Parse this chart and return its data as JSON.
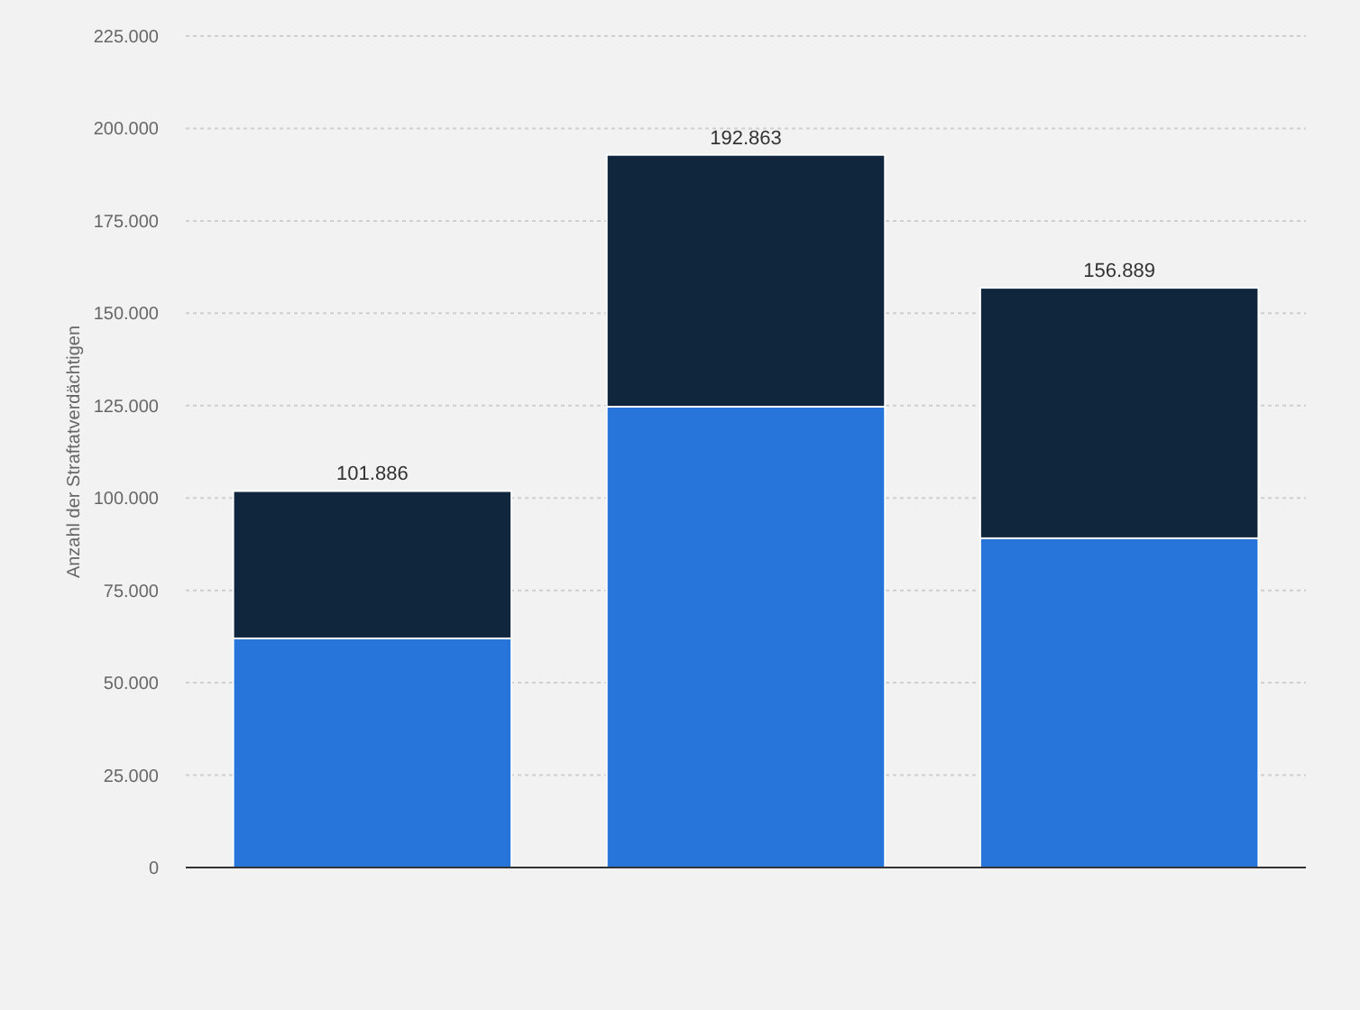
{
  "chart_data": {
    "type": "bar",
    "ylabel": "Anzahl der Straftatverdächtigen",
    "categories": [
      null,
      null,
      null
    ],
    "stacked": true,
    "series": [
      {
        "color": "#2775db",
        "values": [
          62000,
          124700,
          89100
        ]
      },
      {
        "color": "#10263c",
        "values": [
          39886,
          68163,
          67789
        ]
      }
    ],
    "totals": [
      "101.886",
      "192.863",
      "156.889"
    ],
    "ylim": [
      0,
      225000
    ],
    "yticks": [
      {
        "value": 0,
        "label": "0"
      },
      {
        "value": 25000,
        "label": "25.000"
      },
      {
        "value": 50000,
        "label": "50.000"
      },
      {
        "value": 75000,
        "label": "75.000"
      },
      {
        "value": 100000,
        "label": "100.000"
      },
      {
        "value": 125000,
        "label": "125.000"
      },
      {
        "value": 150000,
        "label": "150.000"
      },
      {
        "value": 175000,
        "label": "175.000"
      },
      {
        "value": 200000,
        "label": "200.000"
      },
      {
        "value": 225000,
        "label": "225.000"
      }
    ],
    "grid": "y"
  }
}
